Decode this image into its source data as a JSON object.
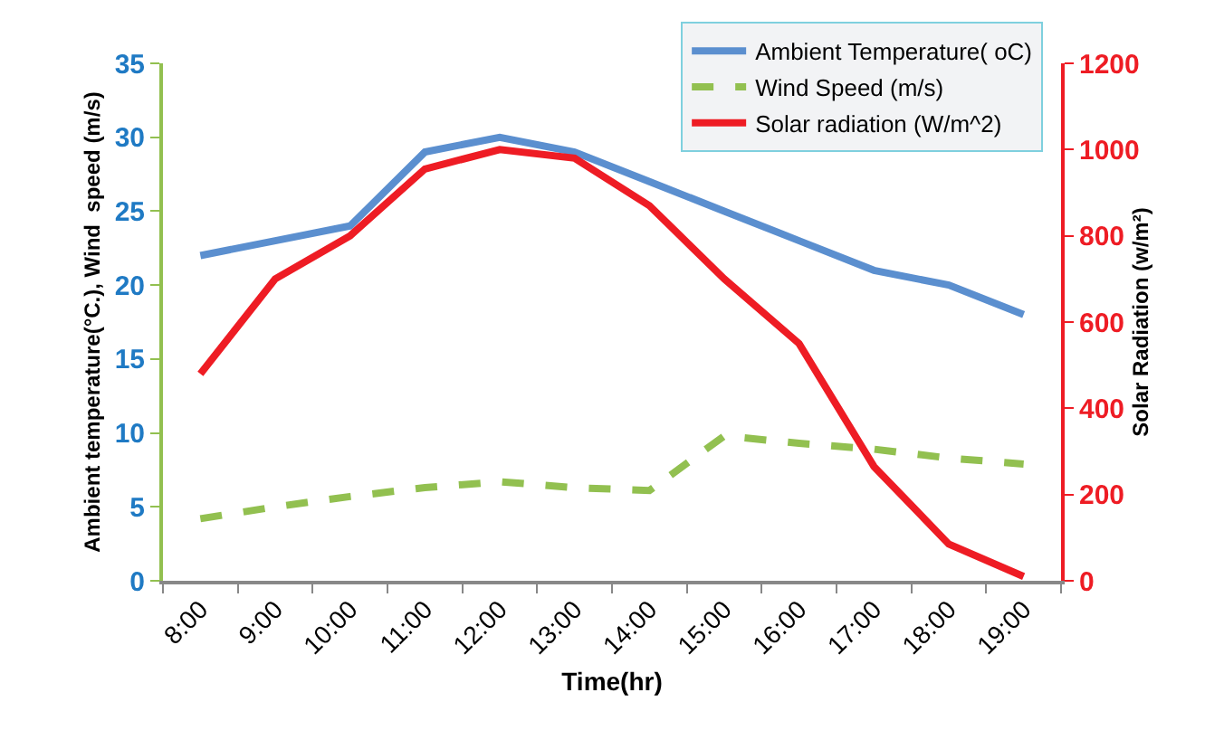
{
  "chart_data": {
    "type": "line",
    "xlabel": "Time(hr)",
    "ylabel": "Ambient temperature(°C.), Wind  speed (m/s)",
    "y2label": "Solar Radiation (w/m²)",
    "categories": [
      "8:00",
      "9:00",
      "10:00",
      "11:00",
      "12:00",
      "13:00",
      "14:00",
      "15:00",
      "16:00",
      "17:00",
      "18:00",
      "19:00"
    ],
    "series": [
      {
        "name": "Ambient Temperature( oC)",
        "color": "#5b8fcf",
        "line_style": "solid",
        "values": [
          22,
          23,
          24,
          29,
          30,
          29,
          27,
          25,
          23,
          21,
          20,
          18
        ]
      },
      {
        "name": "Wind Speed (m/s)",
        "color": "#92c050",
        "line_style": "dashed",
        "values": [
          4.2,
          5,
          5.7,
          6.3,
          6.7,
          6.3,
          6.1,
          9.8,
          9.3,
          8.9,
          8.3,
          7.9
        ]
      },
      {
        "name": "Solar radiation (W/m^2)",
        "color": "#ee1c24",
        "line_style": "solid",
        "axis": "y2",
        "values": [
          480,
          700,
          800,
          955,
          1000,
          980,
          870,
          700,
          550,
          265,
          85,
          10
        ]
      }
    ],
    "ylim": [
      0,
      35
    ],
    "yticks": [
      0,
      5,
      10,
      15,
      20,
      25,
      30,
      35
    ],
    "y2lim": [
      0,
      1200
    ],
    "y2ticks": [
      0,
      200,
      400,
      600,
      800,
      1000,
      1200
    ],
    "grid": false,
    "legend": "top right",
    "marker": "none"
  }
}
